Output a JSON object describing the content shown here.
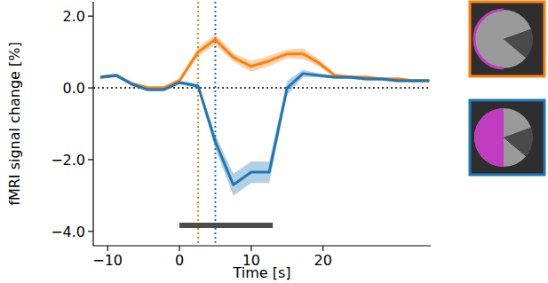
{
  "chart_data": {
    "type": "line",
    "x_label": "Time [s]",
    "y_label": "fMRI signal change [%]",
    "x": [
      -11,
      -8.8,
      -6.6,
      -4.4,
      -2.2,
      0,
      2.6,
      5,
      7.5,
      10,
      12.5,
      15,
      17.2,
      19.4,
      21.6,
      23.8,
      26,
      28.2,
      30.4,
      32.6,
      34.8
    ],
    "series": [
      {
        "color": "#ff7f0e",
        "values": [
          0.3,
          0.35,
          0.12,
          0.0,
          0.0,
          0.2,
          1.0,
          1.35,
          0.85,
          0.6,
          0.75,
          0.95,
          0.95,
          0.7,
          0.35,
          0.3,
          0.3,
          0.25,
          0.25,
          0.2,
          0.2
        ],
        "errors": [
          0.05,
          0.05,
          0.05,
          0.05,
          0.05,
          0.07,
          0.12,
          0.15,
          0.12,
          0.15,
          0.15,
          0.12,
          0.15,
          0.1,
          0.06,
          0.05,
          0.05,
          0.05,
          0.05,
          0.05,
          0.05
        ]
      },
      {
        "color": "#1f77b4",
        "values": [
          0.3,
          0.35,
          0.1,
          -0.05,
          -0.05,
          0.15,
          0.05,
          -1.5,
          -2.7,
          -2.35,
          -2.35,
          0.0,
          0.4,
          0.35,
          0.3,
          0.3,
          0.25,
          0.25,
          0.2,
          0.2,
          0.2
        ],
        "errors": [
          0.05,
          0.05,
          0.05,
          0.05,
          0.05,
          0.05,
          0.07,
          0.2,
          0.3,
          0.3,
          0.3,
          0.2,
          0.1,
          0.06,
          0.05,
          0.05,
          0.05,
          0.05,
          0.05,
          0.05,
          0.05
        ]
      }
    ],
    "xlim": [
      -12,
      35
    ],
    "xticks": [
      {
        "value": -10,
        "label": "−10"
      },
      0,
      10,
      20
    ],
    "ylim": [
      -4.4,
      2.4
    ],
    "yticks": [
      {
        "value": 2,
        "label": "2.0"
      },
      {
        "value": 0,
        "label": "0.0"
      },
      {
        "value": -2,
        "label": "−2.0"
      },
      {
        "value": -4,
        "label": "−4.0"
      }
    ],
    "grid": false,
    "annotations": [
      {
        "x": 2.6,
        "color": "#ff7f0e",
        "line_style": "dotted"
      },
      {
        "x": 5,
        "color": "#1f77b4",
        "line_style": "dotted"
      },
      {
        "y": 0,
        "color": "#444444",
        "line_style": "dotted"
      },
      {
        "x_range": [
          0,
          13
        ],
        "color": "#4d4d4d"
      }
    ]
  }
}
